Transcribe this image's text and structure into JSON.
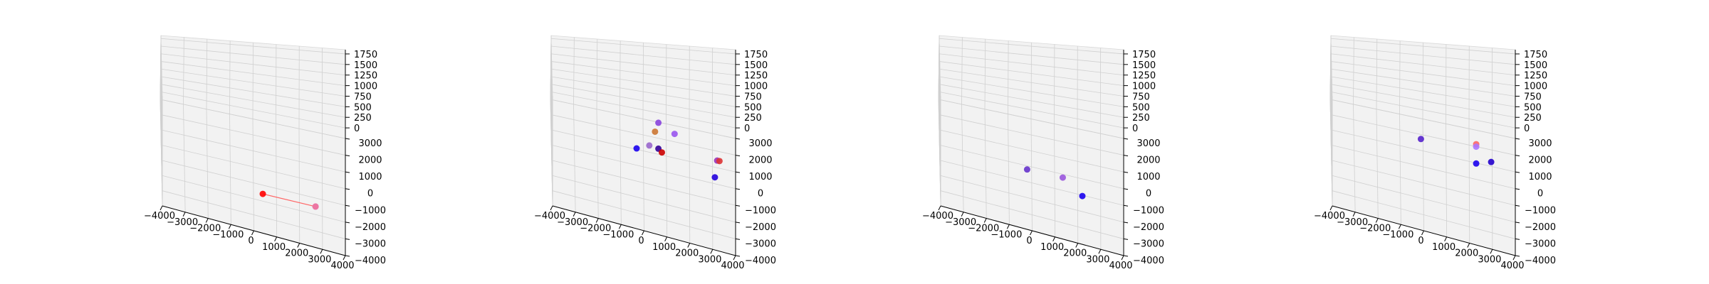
{
  "chart_data": [
    {
      "type": "scatter",
      "xlim": [
        -4000,
        4000
      ],
      "ylim": [
        -4000,
        3000
      ],
      "zlim": [
        -250,
        1850
      ],
      "grid": true,
      "x_ticks": [
        "−4000",
        "−3000",
        "−2000",
        "−1000",
        "0",
        "1000",
        "2000",
        "3000",
        "4000"
      ],
      "y_ticks": [
        "−4000",
        "−3000",
        "−2000",
        "−1000",
        "0",
        "1000",
        "2000",
        "3000"
      ],
      "z_ticks": [
        "0",
        "250",
        "500",
        "750",
        "1000",
        "1250",
        "1500",
        "1750"
      ],
      "points": [
        {
          "x": 400,
          "y": -2400,
          "z": 0,
          "color": "#ff0000"
        },
        {
          "x": 2700,
          "y": -2400,
          "z": 0,
          "color": "#cc66ee"
        },
        {
          "x": 2700,
          "y": -2400,
          "z": 0,
          "color": "#ee7799"
        }
      ],
      "segments": [
        {
          "from": [
            400,
            -2400,
            0
          ],
          "to": [
            2700,
            -2400,
            0
          ],
          "color": "#ff6666"
        }
      ]
    },
    {
      "type": "scatter",
      "xlim": [
        -4000,
        4000
      ],
      "ylim": [
        -4000,
        3000
      ],
      "zlim": [
        -250,
        1850
      ],
      "grid": true,
      "x_ticks": [
        "−4000",
        "−3000",
        "−2000",
        "−1000",
        "0",
        "1000",
        "2000",
        "3000",
        "4000"
      ],
      "y_ticks": [
        "−4000",
        "−3000",
        "−2000",
        "−1000",
        "0",
        "1000",
        "2000",
        "3000"
      ],
      "z_ticks": [
        "0",
        "250",
        "500",
        "750",
        "1000",
        "1250",
        "1500",
        "1750"
      ],
      "points": [
        {
          "x": -300,
          "y": -100,
          "z": 150,
          "color": "#1a00ee"
        },
        {
          "x": 250,
          "y": -200,
          "z": 300,
          "color": "#9966cc"
        },
        {
          "x": 500,
          "y": 200,
          "z": 500,
          "color": "#cc7733"
        },
        {
          "x": 650,
          "y": 900,
          "z": 500,
          "color": "#8844dd"
        },
        {
          "x": 1350,
          "y": 300,
          "z": 500,
          "color": "#9955ee"
        },
        {
          "x": 650,
          "y": 500,
          "z": 50,
          "color": "#330099"
        },
        {
          "x": 800,
          "y": 300,
          "z": 50,
          "color": "#cc0000"
        },
        {
          "x": 3200,
          "y": -300,
          "z": 300,
          "color": "#9933bb"
        },
        {
          "x": 3300,
          "y": -300,
          "z": 300,
          "color": "#dd3333"
        },
        {
          "x": 3100,
          "y": -400,
          "z": 0,
          "color": "#2200dd"
        }
      ]
    },
    {
      "type": "scatter",
      "xlim": [
        -4000,
        4000
      ],
      "ylim": [
        -4000,
        3000
      ],
      "zlim": [
        -250,
        1850
      ],
      "grid": true,
      "x_ticks": [
        "−4000",
        "−3000",
        "−2000",
        "−1000",
        "0",
        "1000",
        "2000",
        "3000",
        "4000"
      ],
      "y_ticks": [
        "−4000",
        "−3000",
        "−2000",
        "−1000",
        "0",
        "1000",
        "2000",
        "3000"
      ],
      "z_ticks": [
        "0",
        "250",
        "500",
        "750",
        "1000",
        "1250",
        "1500",
        "1750"
      ],
      "points": [
        {
          "x": -200,
          "y": -1000,
          "z": 0,
          "color": "#6633cc"
        },
        {
          "x": 1350,
          "y": -1000,
          "z": 0,
          "color": "#9955dd"
        },
        {
          "x": 2200,
          "y": -1900,
          "z": 0,
          "color": "#1a00ee"
        }
      ]
    },
    {
      "type": "scatter",
      "xlim": [
        -4000,
        4000
      ],
      "ylim": [
        -4000,
        3000
      ],
      "zlim": [
        -250,
        1850
      ],
      "grid": true,
      "x_ticks": [
        "−4000",
        "−3000",
        "−2000",
        "−1000",
        "0",
        "1000",
        "2000",
        "3000",
        "4000"
      ],
      "y_ticks": [
        "−4000",
        "−3000",
        "−2000",
        "−1000",
        "0",
        "1000",
        "2000",
        "3000"
      ],
      "z_ticks": [
        "0",
        "250",
        "500",
        "750",
        "1000",
        "1250",
        "1500",
        "1750"
      ],
      "points": [
        {
          "x": -100,
          "y": 300,
          "z": 250,
          "color": "#5522cc"
        },
        {
          "x": 2300,
          "y": 200,
          "z": 400,
          "color": "#ff6666"
        },
        {
          "x": 2300,
          "y": 200,
          "z": 350,
          "color": "#aa77ff"
        },
        {
          "x": 2300,
          "y": -100,
          "z": 100,
          "color": "#1a00ee"
        },
        {
          "x": 2950,
          "y": -300,
          "z": 250,
          "color": "#2200cc"
        }
      ]
    }
  ]
}
